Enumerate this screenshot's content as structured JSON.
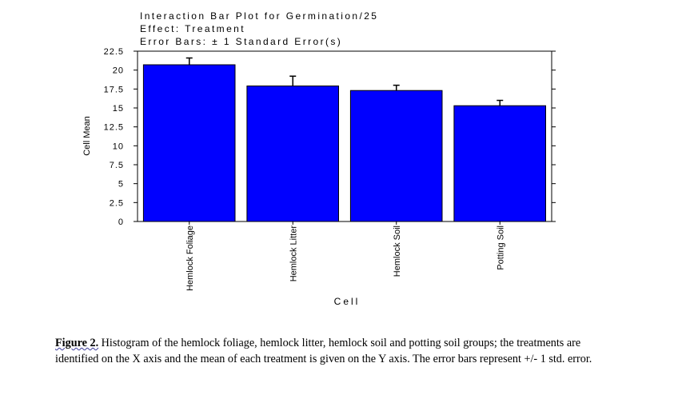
{
  "chart_data": {
    "type": "bar",
    "title_lines": [
      "Interaction Bar Plot for Germination/25",
      "Effect: Treatment",
      "Error Bars: ± 1 Standard Error(s)"
    ],
    "xlabel": "Cell",
    "ylabel": "Cell Mean",
    "ylim": [
      0,
      22.5
    ],
    "yticks": [
      "0",
      "2.5",
      "5",
      "7.5",
      "10",
      "12.5",
      "15",
      "17.5",
      "20",
      "22.5"
    ],
    "categories": [
      "Hemlock Foliage",
      "Hemlock Litter",
      "Hemlock Soil",
      "Potting Soil"
    ],
    "values": [
      20.7,
      17.9,
      17.3,
      15.3
    ],
    "errors": [
      0.9,
      1.3,
      0.7,
      0.7
    ],
    "bar_color": "#0000ff",
    "grid": false
  },
  "caption": {
    "lead": "Figure 2.",
    "text": " Histogram of the hemlock foliage, hemlock litter, hemlock soil and potting soil groups; the treatments are identified on the X axis and the mean of each treatment is given on the Y axis.  The error bars represent +/- 1 std. error."
  }
}
